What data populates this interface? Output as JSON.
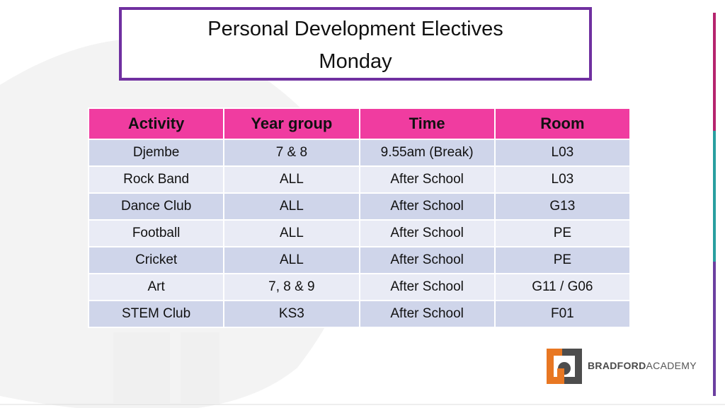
{
  "title": {
    "lines": [
      "Personal Development Electives",
      "Monday"
    ]
  },
  "table": {
    "header": [
      "Activity",
      "Year group",
      "Time",
      "Room"
    ],
    "rows": [
      [
        "Djembe",
        "7 & 8",
        "9.55am (Break)",
        "L03"
      ],
      [
        "Rock Band",
        "ALL",
        "After School",
        "L03"
      ],
      [
        "Dance Club",
        "ALL",
        "After School",
        "G13"
      ],
      [
        "Football",
        "ALL",
        "After School",
        "PE"
      ],
      [
        "Cricket",
        "ALL",
        "After School",
        "PE"
      ],
      [
        "Art",
        "7, 8 & 9",
        "After School",
        "G11 / G06"
      ],
      [
        "STEM Club",
        "KS3",
        "After School",
        "F01"
      ]
    ]
  },
  "logo": {
    "bold": "BRADFORD",
    "regular": "ACADEMY"
  }
}
